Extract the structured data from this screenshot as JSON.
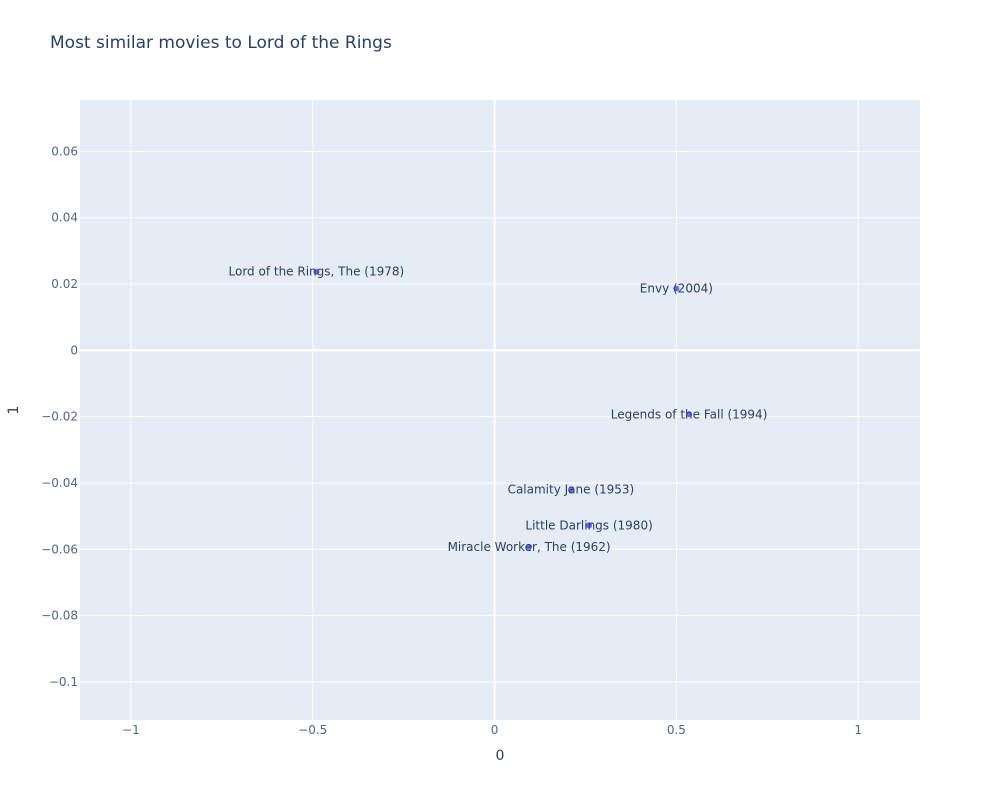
{
  "chart_data": {
    "type": "scatter",
    "title": "Most similar movies to Lord of the Rings",
    "xlabel": "0",
    "ylabel": "1",
    "xlim": [
      -1.14,
      1.17
    ],
    "ylim": [
      -0.1115,
      0.0755
    ],
    "xticks": [
      -1,
      -0.5,
      0,
      0.5,
      1
    ],
    "xtick_labels": [
      "−1",
      "−0.5",
      "0",
      "0.5",
      "1"
    ],
    "yticks": [
      0.06,
      0.04,
      0.02,
      0,
      -0.02,
      -0.04,
      -0.06,
      -0.08,
      -0.1
    ],
    "ytick_labels": [
      "0.06",
      "0.04",
      "0.02",
      "0",
      "−0.02",
      "−0.04",
      "−0.06",
      "−0.08",
      "−0.1"
    ],
    "grid": true,
    "points": [
      {
        "label": "Lord of the Rings, The (1978)",
        "x": -0.49,
        "y": 0.0237
      },
      {
        "label": "Envy (2004)",
        "x": 0.5,
        "y": 0.0186
      },
      {
        "label": "Legends of the Fall (1994)",
        "x": 0.535,
        "y": -0.0193
      },
      {
        "label": "Calamity Jane (1953)",
        "x": 0.21,
        "y": -0.042
      },
      {
        "label": "Little Darlings (1980)",
        "x": 0.26,
        "y": -0.0528
      },
      {
        "label": "Miracle Worker, The (1962)",
        "x": 0.095,
        "y": -0.0593
      }
    ],
    "colors": {
      "plot_bg": "#e5ecf6",
      "grid": "#ffffff",
      "marker": "#636efa",
      "text": "#2a3f5f",
      "tick_text": "#506784"
    }
  }
}
